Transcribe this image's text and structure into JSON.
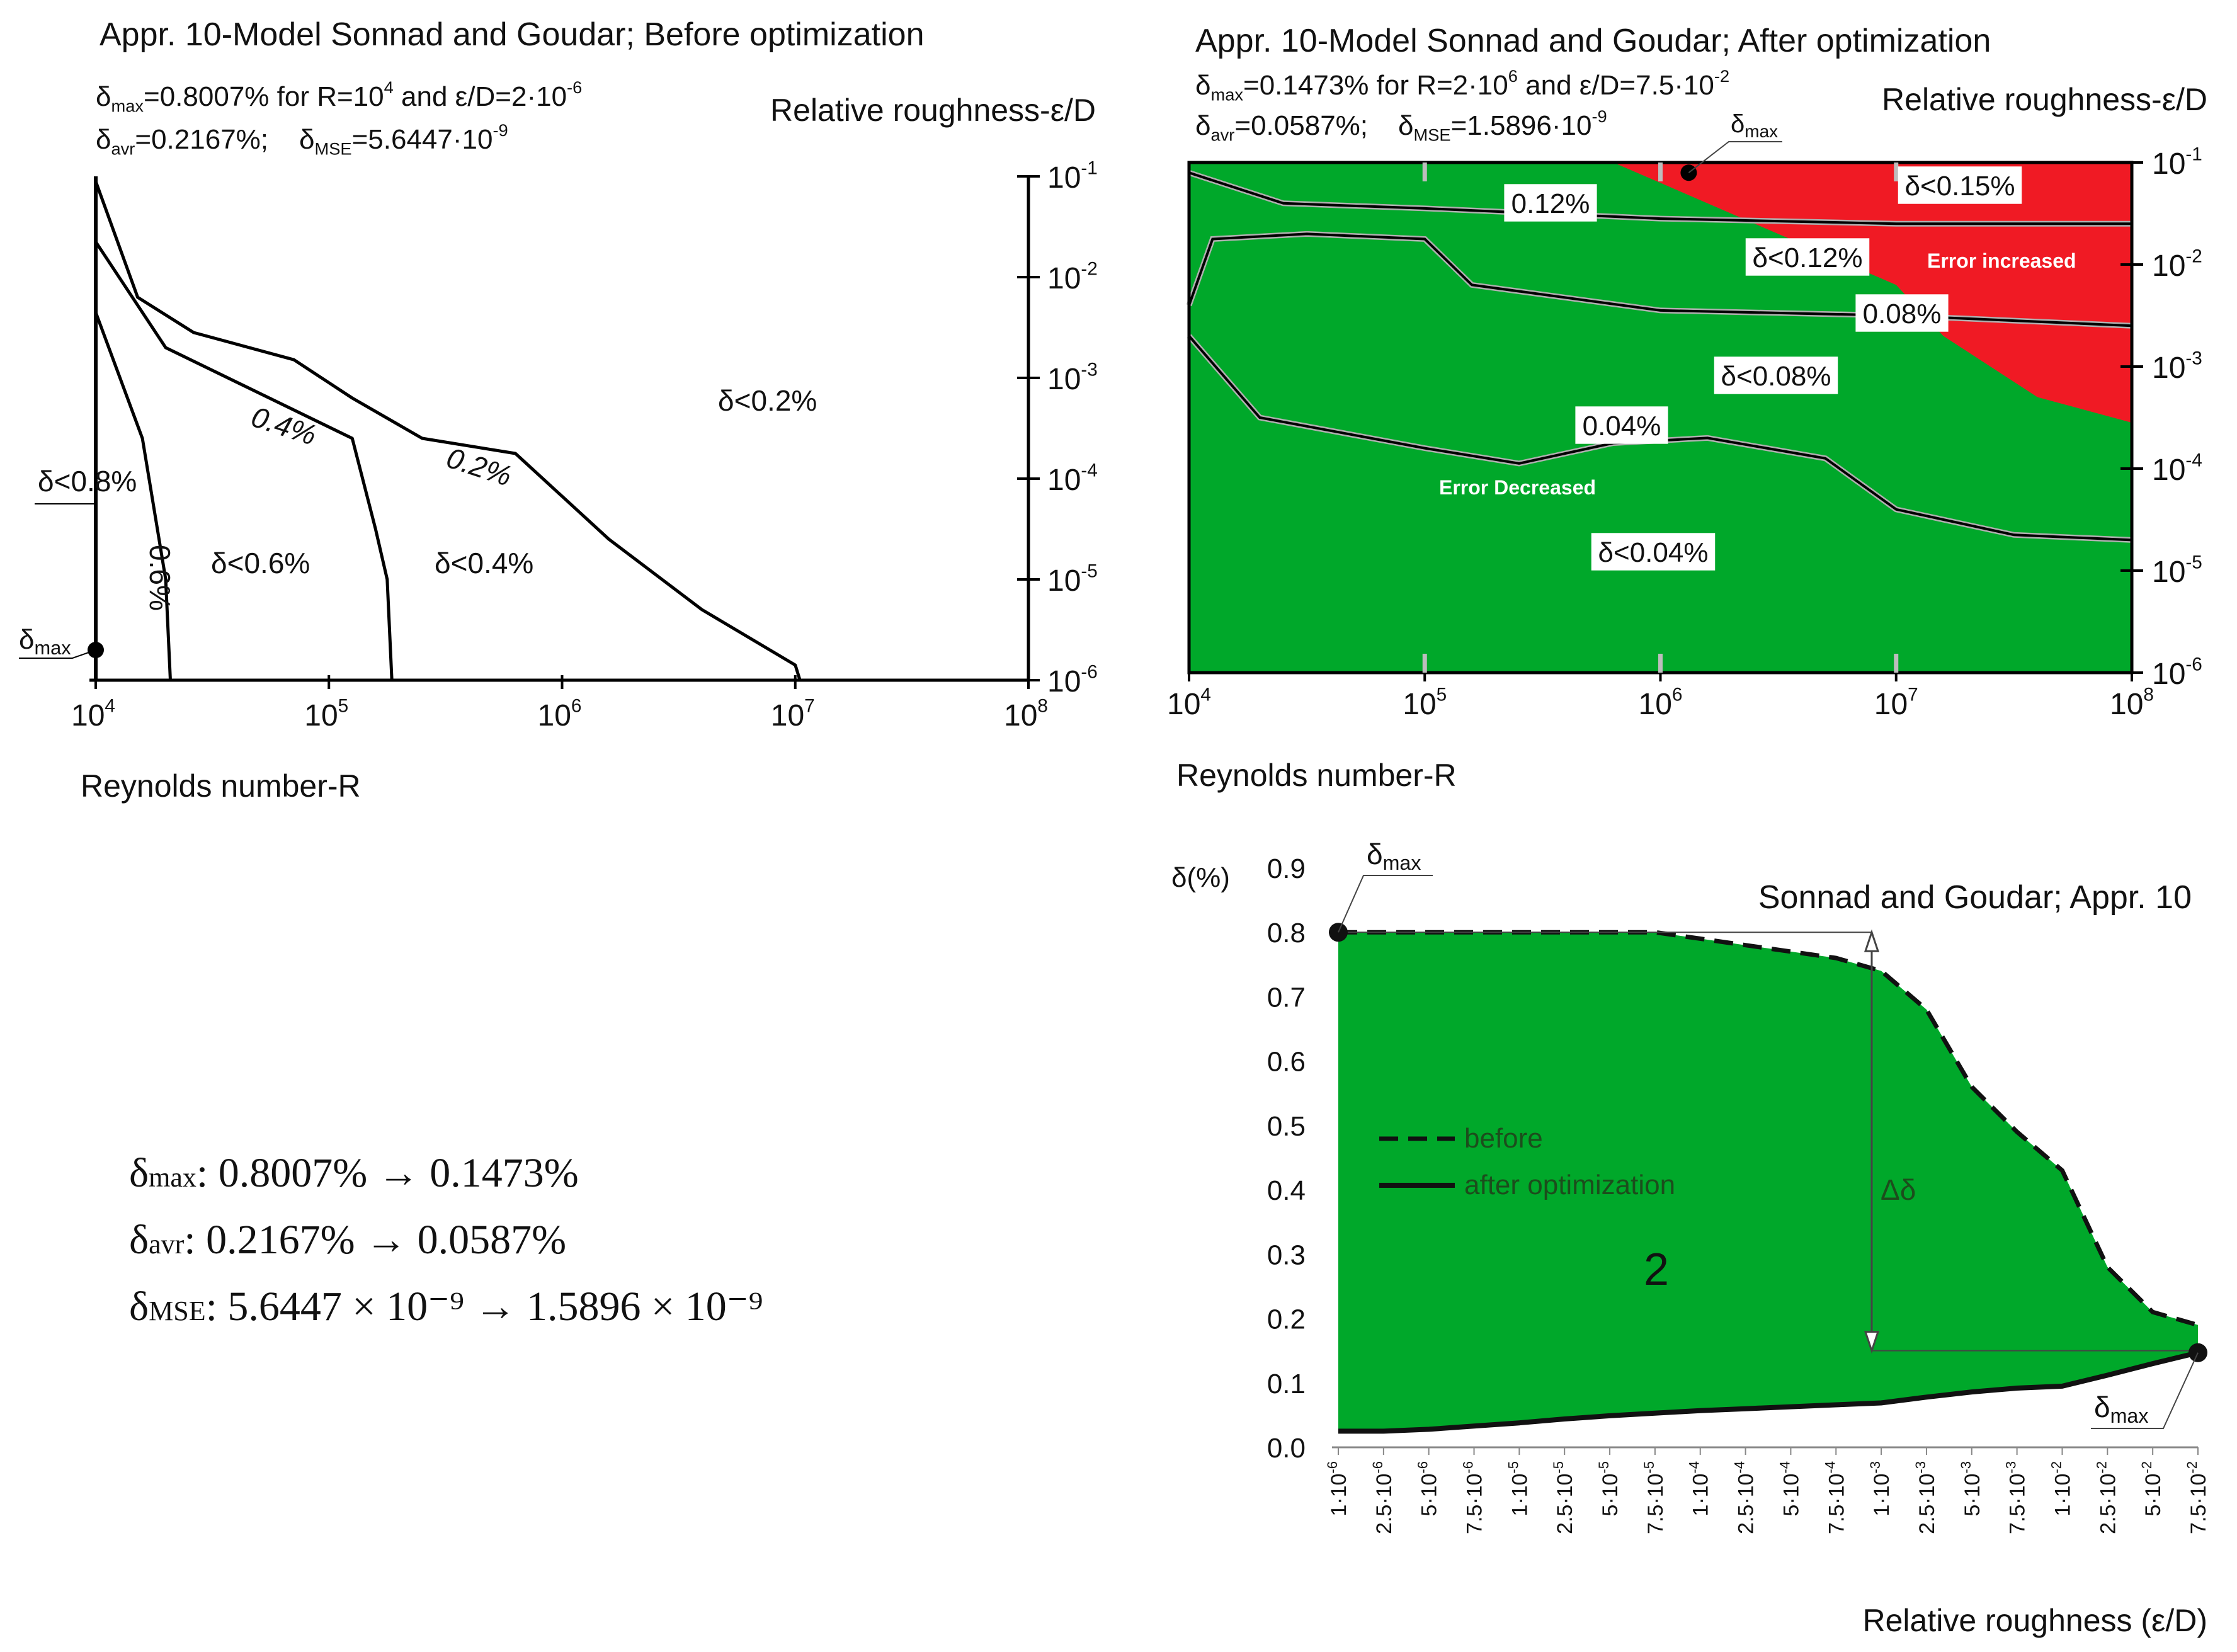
{
  "colors": {
    "good": "#00a82a",
    "bad": "#f01a24",
    "ink": "#111111",
    "axis": "#000000"
  },
  "summary": {
    "max": {
      "symbol": "δ",
      "sub": "max",
      "text": ": 0.8007% → 0.1473%"
    },
    "avr": {
      "symbol": "δ",
      "sub": "avr",
      "text": ": 0.2167% → 0.0587%"
    },
    "mse": {
      "symbol": "δ",
      "sub": "MSE",
      "text": ": 5.6447 × 10⁻⁹ → 1.5896 × 10⁻⁹"
    }
  },
  "chart_data": [
    {
      "id": "before",
      "type": "contour",
      "title": "Appr. 10-Model Sonnad and Goudar; Before optimization",
      "xlabel": "Reynolds number-R",
      "ylabel": "Relative roughness-ε/D",
      "x_log10_range": [
        4,
        8
      ],
      "y_log10_range": [
        -6,
        -1
      ],
      "x_ticks": [
        {
          "base": "10",
          "exp": "4"
        },
        {
          "base": "10",
          "exp": "5"
        },
        {
          "base": "10",
          "exp": "6"
        },
        {
          "base": "10",
          "exp": "7"
        },
        {
          "base": "10",
          "exp": "8"
        }
      ],
      "y_ticks": [
        {
          "base": "10",
          "exp": "-1"
        },
        {
          "base": "10",
          "exp": "-2"
        },
        {
          "base": "10",
          "exp": "-3"
        },
        {
          "base": "10",
          "exp": "-4"
        },
        {
          "base": "10",
          "exp": "-5"
        },
        {
          "base": "10",
          "exp": "-6"
        }
      ],
      "stats": {
        "max": {
          "pre": "δ",
          "sub": "max",
          "t1": "=0.8007% for R=10",
          "e1": "4",
          "t2": " and ε/D=2·10",
          "e2": "-6"
        },
        "avr": {
          "pre": "δ",
          "sub": "avr",
          "t1": "=0.2167%; "
        },
        "mse": {
          "pre": "δ",
          "sub": "MSE",
          "t1": "=5.6447·10",
          "e1": "-9"
        }
      },
      "contours": [
        {
          "label": "0.2%",
          "points": [
            [
              4.0,
              -1.05
            ],
            [
              4.18,
              -2.2
            ],
            [
              4.42,
              -2.55
            ],
            [
              4.85,
              -2.82
            ],
            [
              5.1,
              -3.2
            ],
            [
              5.4,
              -3.6
            ],
            [
              5.8,
              -3.75
            ],
            [
              6.2,
              -4.6
            ],
            [
              6.6,
              -5.3
            ],
            [
              7.0,
              -5.85
            ],
            [
              7.02,
              -6.0
            ]
          ]
        },
        {
          "label": "0.4%",
          "points": [
            [
              4.0,
              -1.65
            ],
            [
              4.3,
              -2.7
            ],
            [
              4.7,
              -3.15
            ],
            [
              5.1,
              -3.6
            ],
            [
              5.2,
              -4.5
            ],
            [
              5.25,
              -5.0
            ],
            [
              5.27,
              -6.0
            ]
          ]
        },
        {
          "label": "0.6%",
          "points": [
            [
              4.0,
              -2.35
            ],
            [
              4.2,
              -3.6
            ],
            [
              4.3,
              -5.0
            ],
            [
              4.32,
              -6.0
            ]
          ]
        }
      ],
      "region_labels": [
        "δ<0.2%",
        "δ<0.4%",
        "δ<0.6%",
        "δ<0.8%"
      ],
      "marker": {
        "label": "δ",
        "sub": "max",
        "x_log10": 4,
        "y_log10": -5.7
      }
    },
    {
      "id": "after",
      "type": "contour",
      "title": "Appr. 10-Model Sonnad and Goudar; After optimization",
      "xlabel": "Reynolds number-R",
      "ylabel": "Relative roughness-ε/D",
      "x_log10_range": [
        4,
        8
      ],
      "y_log10_range": [
        -6,
        -1
      ],
      "x_ticks": [
        {
          "base": "10",
          "exp": "4"
        },
        {
          "base": "10",
          "exp": "5"
        },
        {
          "base": "10",
          "exp": "6"
        },
        {
          "base": "10",
          "exp": "7"
        },
        {
          "base": "10",
          "exp": "8"
        }
      ],
      "y_ticks": [
        {
          "base": "10",
          "exp": "-1"
        },
        {
          "base": "10",
          "exp": "-2"
        },
        {
          "base": "10",
          "exp": "-3"
        },
        {
          "base": "10",
          "exp": "-4"
        },
        {
          "base": "10",
          "exp": "-5"
        },
        {
          "base": "10",
          "exp": "-6"
        }
      ],
      "stats": {
        "max": {
          "pre": "δ",
          "sub": "max",
          "t1": "=0.1473% for R=2·10",
          "e1": "6",
          "t2": " and ε/D=7.5·10",
          "e2": "-2"
        },
        "avr": {
          "pre": "δ",
          "sub": "avr",
          "t1": "=0.0587%; "
        },
        "mse": {
          "pre": "δ",
          "sub": "MSE",
          "t1": "=1.5896·10",
          "e1": "-9"
        }
      },
      "contours": [
        {
          "label": "0.12%",
          "points": [
            [
              4.0,
              -1.1
            ],
            [
              4.4,
              -1.4
            ],
            [
              5.0,
              -1.45
            ],
            [
              5.5,
              -1.5
            ],
            [
              6.0,
              -1.55
            ],
            [
              7.0,
              -1.6
            ],
            [
              8.0,
              -1.6
            ]
          ]
        },
        {
          "label": "0.08%",
          "points": [
            [
              4.0,
              -2.4
            ],
            [
              4.1,
              -1.75
            ],
            [
              4.5,
              -1.7
            ],
            [
              5.0,
              -1.75
            ],
            [
              5.2,
              -2.2
            ],
            [
              6.0,
              -2.45
            ],
            [
              7.0,
              -2.5
            ],
            [
              8.0,
              -2.6
            ]
          ]
        },
        {
          "label": "0.04%",
          "points": [
            [
              4.0,
              -2.7
            ],
            [
              4.3,
              -3.5
            ],
            [
              5.0,
              -3.8
            ],
            [
              5.4,
              -3.95
            ],
            [
              5.8,
              -3.75
            ],
            [
              6.2,
              -3.7
            ],
            [
              6.7,
              -3.9
            ],
            [
              7.0,
              -4.4
            ],
            [
              7.5,
              -4.65
            ],
            [
              8.0,
              -4.7
            ]
          ]
        }
      ],
      "regions": [
        {
          "name": "Error increased",
          "color": "bad",
          "boundary": [
            [
              5.8,
              -1.0
            ],
            [
              6.1,
              -1.3
            ],
            [
              6.4,
              -1.6
            ],
            [
              6.7,
              -1.9
            ],
            [
              7.0,
              -2.2
            ],
            [
              7.2,
              -2.7
            ],
            [
              7.6,
              -3.3
            ],
            [
              8.0,
              -3.55
            ]
          ]
        }
      ],
      "region_labels": [
        "δ<0.15%",
        "δ<0.12%",
        "δ<0.08%",
        "δ<0.04%"
      ],
      "region_names": [
        "Error increased",
        "Error Decreased"
      ],
      "marker": {
        "label": "δ",
        "sub": "max",
        "x_log10": 6.12,
        "y_log10": -1.1
      }
    },
    {
      "id": "compare",
      "type": "area",
      "title": "Sonnad and Goudar; Appr. 10",
      "xlabel": "Relative roughness (ε/D)",
      "ylabel": "δ(%)",
      "ylim": [
        0,
        0.9
      ],
      "y_ticks": [
        "0.0",
        "0.1",
        "0.2",
        "0.3",
        "0.4",
        "0.5",
        "0.6",
        "0.7",
        "0.8",
        "0.9"
      ],
      "categories": [
        {
          "m": "1·10",
          "e": "-6"
        },
        {
          "m": "2.5·10",
          "e": "-6"
        },
        {
          "m": "5·10",
          "e": "-6"
        },
        {
          "m": "7.5·10",
          "e": "-6"
        },
        {
          "m": "1·10",
          "e": "-5"
        },
        {
          "m": "2.5·10",
          "e": "-5"
        },
        {
          "m": "5·10",
          "e": "-5"
        },
        {
          "m": "7.5·10",
          "e": "-5"
        },
        {
          "m": "1·10",
          "e": "-4"
        },
        {
          "m": "2.5·10",
          "e": "-4"
        },
        {
          "m": "5·10",
          "e": "-4"
        },
        {
          "m": "7.5·10",
          "e": "-4"
        },
        {
          "m": "1·10",
          "e": "-3"
        },
        {
          "m": "2.5·10",
          "e": "-3"
        },
        {
          "m": "5·10",
          "e": "-3"
        },
        {
          "m": "7.5·10",
          "e": "-3"
        },
        {
          "m": "1·10",
          "e": "-2"
        },
        {
          "m": "2.5·10",
          "e": "-2"
        },
        {
          "m": "5·10",
          "e": "-2"
        },
        {
          "m": "7.5·10",
          "e": "-2"
        }
      ],
      "series": [
        {
          "name": "before",
          "style": "dashed",
          "values": [
            0.8,
            0.8,
            0.8,
            0.8,
            0.8,
            0.8,
            0.8,
            0.8,
            0.79,
            0.78,
            0.77,
            0.76,
            0.74,
            0.68,
            0.56,
            0.49,
            0.43,
            0.28,
            0.21,
            0.19
          ]
        },
        {
          "name": "after optimization",
          "style": "solid",
          "values": [
            0.025,
            0.025,
            0.028,
            0.033,
            0.038,
            0.044,
            0.049,
            0.053,
            0.057,
            0.06,
            0.063,
            0.066,
            0.069,
            0.078,
            0.086,
            0.092,
            0.095,
            0.112,
            0.13,
            0.147
          ]
        }
      ],
      "fill_label": "2",
      "delta_label": "Δδ",
      "markers": [
        {
          "label": "δ",
          "sub": "max",
          "index": 0,
          "series": 0
        },
        {
          "label": "δ",
          "sub": "max",
          "index": 19,
          "series": 1
        }
      ]
    }
  ]
}
